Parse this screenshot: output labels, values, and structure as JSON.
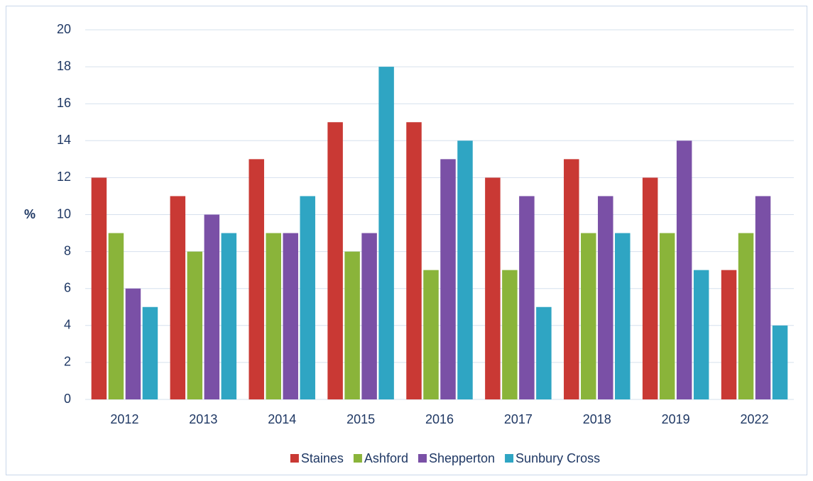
{
  "chart_data": {
    "type": "bar",
    "ylabel": "%",
    "categories": [
      "2012",
      "2013",
      "2014",
      "2015",
      "2016",
      "2017",
      "2018",
      "2019",
      "2022"
    ],
    "series": [
      {
        "name": "Staines",
        "color": "#c93934",
        "values": [
          12,
          11,
          13,
          15,
          15,
          12,
          13,
          12,
          7
        ]
      },
      {
        "name": "Ashford",
        "color": "#8ab43a",
        "values": [
          9,
          8,
          9,
          8,
          7,
          7,
          9,
          9,
          9
        ]
      },
      {
        "name": "Shepperton",
        "color": "#7a50a6",
        "values": [
          6,
          10,
          9,
          9,
          13,
          11,
          11,
          14,
          11
        ]
      },
      {
        "name": "Sunbury Cross",
        "color": "#2fa5c3",
        "values": [
          5,
          9,
          11,
          18,
          14,
          5,
          9,
          7,
          4
        ]
      }
    ],
    "ylim": [
      0,
      20
    ],
    "yticks": [
      0,
      2,
      4,
      6,
      8,
      10,
      12,
      14,
      16,
      18,
      20
    ],
    "grid": true,
    "legend": "bottom"
  }
}
